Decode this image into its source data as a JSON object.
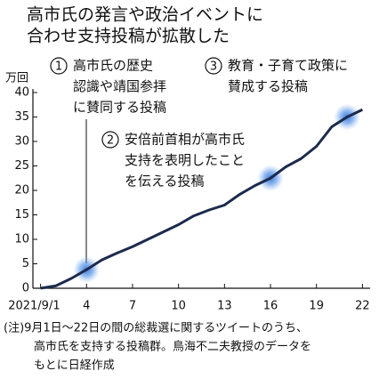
{
  "chart_data": {
    "type": "line",
    "title": [
      "高市氏の発言や政治イベントに",
      "合わせ支持投稿が拡散した"
    ],
    "y_unit": "万回",
    "x": [
      1,
      2,
      3,
      4,
      5,
      6,
      7,
      8,
      9,
      10,
      11,
      12,
      13,
      14,
      15,
      16,
      17,
      18,
      19,
      20,
      21,
      22
    ],
    "series": [
      {
        "color": "#1c2a4c",
        "values": [
          0,
          0.5,
          2,
          3.8,
          5.8,
          7.2,
          8.5,
          10,
          11.5,
          13,
          14.8,
          16,
          17,
          19.2,
          21,
          22.5,
          24.8,
          26.5,
          29,
          33,
          35,
          36.5
        ]
      }
    ],
    "xlim": [
      0.5,
      22.5
    ],
    "xticks": [
      {
        "value": 1,
        "label": "2021/9/1"
      },
      4,
      7,
      10,
      13,
      16,
      19,
      22
    ],
    "ylim": [
      0,
      40
    ],
    "yticks": [
      0,
      5,
      10,
      15,
      20,
      25,
      30,
      35,
      40
    ],
    "annotations": [
      {
        "number": "1",
        "lines": [
          "高市氏の歴史",
          "認識や靖国参拝",
          "に賛同する投稿"
        ]
      },
      {
        "number": "2",
        "lines": [
          "安倍前首相が高市氏",
          "支持を表明したこと",
          "を伝える投稿"
        ]
      },
      {
        "number": "3",
        "lines": [
          "教育・子育て政策に",
          "賛成する投稿"
        ]
      }
    ],
    "note": [
      "(注)9月1日～22日の間の総裁選に関するツイートのうち、",
      "高市氏を支持する投稿群。鳥海不二夫教授のデータを",
      "もとに日経作成"
    ]
  }
}
